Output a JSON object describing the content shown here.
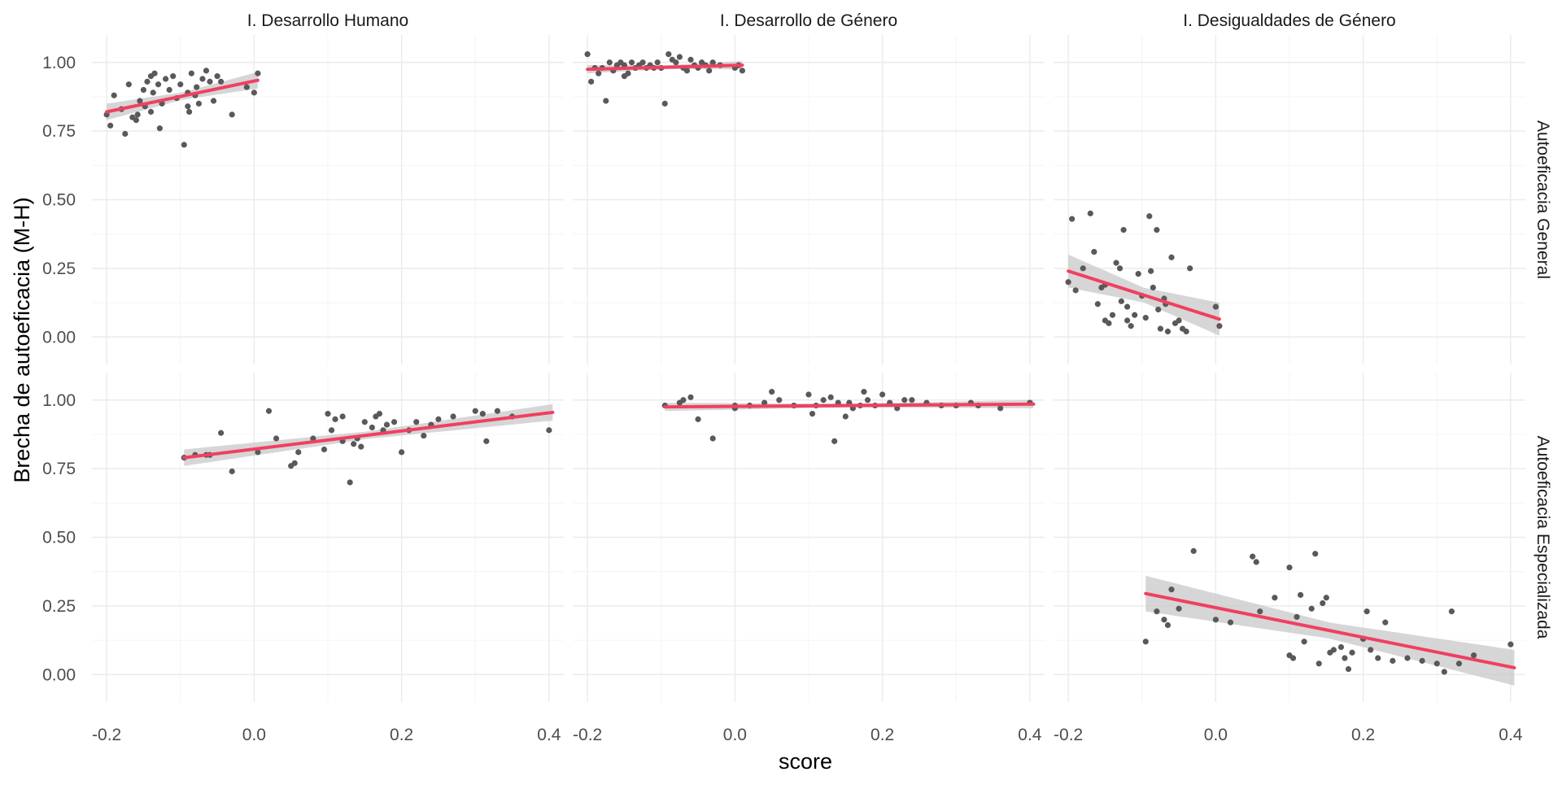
{
  "chart_data": {
    "type": "scatter",
    "xlabel": "score",
    "ylabel": "Brecha de autoeficacia (M-H)",
    "xlim": [
      -0.22,
      0.42
    ],
    "ylim": [
      -0.1,
      1.1
    ],
    "x_ticks": [
      -0.2,
      0.0,
      0.2,
      0.4
    ],
    "x_tick_labels": [
      "-0.2",
      "0.0",
      "0.2",
      "0.4"
    ],
    "y_ticks": [
      0.0,
      0.25,
      0.5,
      0.75,
      1.0
    ],
    "y_tick_labels": [
      "0.00",
      "0.25",
      "0.50",
      "0.75",
      "1.00"
    ],
    "columns": [
      "I. Desarrollo Humano",
      "I. Desarrollo de Género",
      "I. Desigualdades de Género"
    ],
    "rows": [
      "Autoeficacia General",
      "Autoeficacia Especializada"
    ],
    "colors": {
      "points": "#595959",
      "fit_line": "#f0405f",
      "confidence_band": "#c8c8c8",
      "grid": "#ebebeb"
    },
    "grid": true,
    "panels": [
      {
        "column": "I. Desarrollo Humano",
        "row": "Autoeficacia General",
        "fit": {
          "x0": -0.2,
          "y0": 0.82,
          "x1": 0.005,
          "y1": 0.935,
          "band": 0.03
        },
        "points": [
          [
            -0.2,
            0.81
          ],
          [
            -0.195,
            0.77
          ],
          [
            -0.19,
            0.88
          ],
          [
            -0.18,
            0.83
          ],
          [
            -0.175,
            0.74
          ],
          [
            -0.17,
            0.92
          ],
          [
            -0.165,
            0.8
          ],
          [
            -0.16,
            0.79
          ],
          [
            -0.158,
            0.81
          ],
          [
            -0.155,
            0.86
          ],
          [
            -0.15,
            0.9
          ],
          [
            -0.148,
            0.84
          ],
          [
            -0.145,
            0.93
          ],
          [
            -0.14,
            0.95
          ],
          [
            -0.137,
            0.89
          ],
          [
            -0.135,
            0.96
          ],
          [
            -0.13,
            0.92
          ],
          [
            -0.128,
            0.76
          ],
          [
            -0.125,
            0.85
          ],
          [
            -0.12,
            0.94
          ],
          [
            -0.115,
            0.9
          ],
          [
            -0.11,
            0.95
          ],
          [
            -0.105,
            0.87
          ],
          [
            -0.1,
            0.92
          ],
          [
            -0.095,
            0.7
          ],
          [
            -0.09,
            0.84
          ],
          [
            -0.088,
            0.82
          ],
          [
            -0.085,
            0.96
          ],
          [
            -0.08,
            0.88
          ],
          [
            -0.078,
            0.91
          ],
          [
            -0.075,
            0.85
          ],
          [
            -0.07,
            0.94
          ],
          [
            -0.065,
            0.97
          ],
          [
            -0.06,
            0.93
          ],
          [
            -0.055,
            0.86
          ],
          [
            -0.05,
            0.95
          ],
          [
            -0.045,
            0.93
          ],
          [
            -0.03,
            0.81
          ],
          [
            -0.01,
            0.91
          ],
          [
            0.0,
            0.89
          ],
          [
            0.005,
            0.96
          ],
          [
            -0.14,
            0.82
          ],
          [
            -0.09,
            0.89
          ]
        ]
      },
      {
        "column": "I. Desarrollo de Género",
        "row": "Autoeficacia General",
        "fit": {
          "x0": -0.2,
          "y0": 0.975,
          "x1": 0.01,
          "y1": 0.99,
          "band": 0.015
        },
        "points": [
          [
            -0.2,
            1.03
          ],
          [
            -0.195,
            0.93
          ],
          [
            -0.19,
            0.98
          ],
          [
            -0.185,
            0.96
          ],
          [
            -0.18,
            0.98
          ],
          [
            -0.175,
            0.86
          ],
          [
            -0.17,
            1.0
          ],
          [
            -0.165,
            0.97
          ],
          [
            -0.16,
            0.99
          ],
          [
            -0.155,
            1.0
          ],
          [
            -0.15,
            0.99
          ],
          [
            -0.145,
            0.96
          ],
          [
            -0.14,
            1.0
          ],
          [
            -0.135,
            0.98
          ],
          [
            -0.13,
            0.99
          ],
          [
            -0.125,
            1.0
          ],
          [
            -0.12,
            0.98
          ],
          [
            -0.115,
            0.99
          ],
          [
            -0.11,
            0.98
          ],
          [
            -0.105,
            1.0
          ],
          [
            -0.1,
            0.98
          ],
          [
            -0.095,
            0.85
          ],
          [
            -0.09,
            1.03
          ],
          [
            -0.085,
            1.01
          ],
          [
            -0.08,
            1.0
          ],
          [
            -0.075,
            1.02
          ],
          [
            -0.07,
            0.98
          ],
          [
            -0.065,
            0.97
          ],
          [
            -0.06,
            1.01
          ],
          [
            -0.055,
            0.99
          ],
          [
            -0.05,
            0.98
          ],
          [
            -0.045,
            1.0
          ],
          [
            -0.04,
            0.99
          ],
          [
            -0.035,
            0.97
          ],
          [
            -0.03,
            1.0
          ],
          [
            -0.02,
            0.99
          ],
          [
            0.0,
            0.98
          ],
          [
            0.005,
            0.99
          ],
          [
            0.01,
            0.97
          ],
          [
            -0.15,
            0.95
          ]
        ]
      },
      {
        "column": "I. Desigualdades de Género",
        "row": "Autoeficacia General",
        "fit": {
          "x0": -0.2,
          "y0": 0.24,
          "x1": 0.005,
          "y1": 0.065,
          "band": 0.06
        },
        "points": [
          [
            -0.2,
            0.2
          ],
          [
            -0.195,
            0.43
          ],
          [
            -0.19,
            0.17
          ],
          [
            -0.18,
            0.25
          ],
          [
            -0.17,
            0.45
          ],
          [
            -0.165,
            0.31
          ],
          [
            -0.16,
            0.12
          ],
          [
            -0.155,
            0.18
          ],
          [
            -0.15,
            0.06
          ],
          [
            -0.145,
            0.05
          ],
          [
            -0.14,
            0.08
          ],
          [
            -0.135,
            0.27
          ],
          [
            -0.13,
            0.25
          ],
          [
            -0.128,
            0.13
          ],
          [
            -0.125,
            0.39
          ],
          [
            -0.12,
            0.11
          ],
          [
            -0.115,
            0.04
          ],
          [
            -0.11,
            0.08
          ],
          [
            -0.105,
            0.23
          ],
          [
            -0.1,
            0.15
          ],
          [
            -0.095,
            0.07
          ],
          [
            -0.09,
            0.44
          ],
          [
            -0.088,
            0.24
          ],
          [
            -0.085,
            0.18
          ],
          [
            -0.08,
            0.39
          ],
          [
            -0.078,
            0.1
          ],
          [
            -0.075,
            0.03
          ],
          [
            -0.07,
            0.14
          ],
          [
            -0.068,
            0.12
          ],
          [
            -0.065,
            0.02
          ],
          [
            -0.06,
            0.29
          ],
          [
            -0.055,
            0.05
          ],
          [
            -0.05,
            0.06
          ],
          [
            -0.045,
            0.03
          ],
          [
            -0.04,
            0.02
          ],
          [
            -0.035,
            0.25
          ],
          [
            0.0,
            0.11
          ],
          [
            0.005,
            0.04
          ],
          [
            -0.15,
            0.19
          ],
          [
            -0.12,
            0.06
          ]
        ]
      },
      {
        "column": "I. Desarrollo Humano",
        "row": "Autoeficacia Especializada",
        "fit": {
          "x0": -0.095,
          "y0": 0.79,
          "x1": 0.405,
          "y1": 0.955,
          "band": 0.03
        },
        "points": [
          [
            -0.095,
            0.79
          ],
          [
            -0.08,
            0.8
          ],
          [
            -0.065,
            0.8
          ],
          [
            -0.06,
            0.8
          ],
          [
            -0.045,
            0.88
          ],
          [
            -0.03,
            0.74
          ],
          [
            0.005,
            0.81
          ],
          [
            0.02,
            0.96
          ],
          [
            0.03,
            0.86
          ],
          [
            0.05,
            0.76
          ],
          [
            0.055,
            0.77
          ],
          [
            0.06,
            0.81
          ],
          [
            0.08,
            0.86
          ],
          [
            0.095,
            0.82
          ],
          [
            0.1,
            0.95
          ],
          [
            0.105,
            0.89
          ],
          [
            0.11,
            0.93
          ],
          [
            0.12,
            0.85
          ],
          [
            0.13,
            0.7
          ],
          [
            0.135,
            0.84
          ],
          [
            0.14,
            0.86
          ],
          [
            0.145,
            0.83
          ],
          [
            0.15,
            0.92
          ],
          [
            0.16,
            0.9
          ],
          [
            0.165,
            0.94
          ],
          [
            0.17,
            0.95
          ],
          [
            0.175,
            0.89
          ],
          [
            0.18,
            0.91
          ],
          [
            0.19,
            0.92
          ],
          [
            0.2,
            0.81
          ],
          [
            0.21,
            0.89
          ],
          [
            0.22,
            0.92
          ],
          [
            0.23,
            0.87
          ],
          [
            0.24,
            0.91
          ],
          [
            0.25,
            0.93
          ],
          [
            0.27,
            0.94
          ],
          [
            0.3,
            0.96
          ],
          [
            0.31,
            0.95
          ],
          [
            0.315,
            0.85
          ],
          [
            0.33,
            0.96
          ],
          [
            0.35,
            0.94
          ],
          [
            0.4,
            0.89
          ],
          [
            0.12,
            0.94
          ]
        ]
      },
      {
        "column": "I. Desarrollo de Género",
        "row": "Autoeficacia Especializada",
        "fit": {
          "x0": -0.095,
          "y0": 0.975,
          "x1": 0.405,
          "y1": 0.985,
          "band": 0.015
        },
        "points": [
          [
            -0.095,
            0.98
          ],
          [
            -0.075,
            0.99
          ],
          [
            -0.07,
            1.0
          ],
          [
            -0.06,
            1.01
          ],
          [
            -0.05,
            0.93
          ],
          [
            -0.03,
            0.86
          ],
          [
            0.0,
            0.98
          ],
          [
            0.02,
            0.98
          ],
          [
            0.04,
            0.99
          ],
          [
            0.05,
            1.03
          ],
          [
            0.06,
            1.0
          ],
          [
            0.08,
            0.98
          ],
          [
            0.1,
            1.02
          ],
          [
            0.105,
            0.95
          ],
          [
            0.11,
            0.98
          ],
          [
            0.12,
            1.0
          ],
          [
            0.13,
            1.01
          ],
          [
            0.135,
            0.85
          ],
          [
            0.14,
            0.99
          ],
          [
            0.15,
            0.94
          ],
          [
            0.155,
            0.99
          ],
          [
            0.16,
            0.97
          ],
          [
            0.17,
            0.98
          ],
          [
            0.175,
            1.03
          ],
          [
            0.18,
            1.0
          ],
          [
            0.19,
            0.98
          ],
          [
            0.2,
            1.02
          ],
          [
            0.21,
            0.99
          ],
          [
            0.22,
            0.97
          ],
          [
            0.23,
            1.0
          ],
          [
            0.24,
            1.0
          ],
          [
            0.26,
            0.99
          ],
          [
            0.28,
            0.98
          ],
          [
            0.3,
            0.98
          ],
          [
            0.32,
            0.99
          ],
          [
            0.33,
            0.98
          ],
          [
            0.36,
            0.97
          ],
          [
            0.4,
            0.99
          ],
          [
            0.0,
            0.97
          ]
        ]
      },
      {
        "column": "I. Desigualdades de Género",
        "row": "Autoeficacia Especializada",
        "fit": {
          "x0": -0.095,
          "y0": 0.295,
          "x1": 0.405,
          "y1": 0.025,
          "band": 0.065
        },
        "points": [
          [
            -0.095,
            0.12
          ],
          [
            -0.08,
            0.23
          ],
          [
            -0.07,
            0.2
          ],
          [
            -0.065,
            0.18
          ],
          [
            -0.06,
            0.31
          ],
          [
            -0.05,
            0.24
          ],
          [
            -0.03,
            0.45
          ],
          [
            0.0,
            0.2
          ],
          [
            0.02,
            0.19
          ],
          [
            0.05,
            0.43
          ],
          [
            0.055,
            0.41
          ],
          [
            0.06,
            0.23
          ],
          [
            0.08,
            0.28
          ],
          [
            0.1,
            0.39
          ],
          [
            0.1,
            0.07
          ],
          [
            0.105,
            0.06
          ],
          [
            0.11,
            0.21
          ],
          [
            0.115,
            0.29
          ],
          [
            0.13,
            0.24
          ],
          [
            0.135,
            0.44
          ],
          [
            0.14,
            0.04
          ],
          [
            0.145,
            0.26
          ],
          [
            0.15,
            0.28
          ],
          [
            0.155,
            0.08
          ],
          [
            0.16,
            0.09
          ],
          [
            0.17,
            0.1
          ],
          [
            0.175,
            0.06
          ],
          [
            0.18,
            0.02
          ],
          [
            0.185,
            0.08
          ],
          [
            0.2,
            0.13
          ],
          [
            0.205,
            0.23
          ],
          [
            0.21,
            0.09
          ],
          [
            0.22,
            0.06
          ],
          [
            0.23,
            0.19
          ],
          [
            0.24,
            0.05
          ],
          [
            0.26,
            0.06
          ],
          [
            0.28,
            0.05
          ],
          [
            0.3,
            0.04
          ],
          [
            0.31,
            0.01
          ],
          [
            0.32,
            0.23
          ],
          [
            0.33,
            0.04
          ],
          [
            0.35,
            0.07
          ],
          [
            0.4,
            0.11
          ],
          [
            0.12,
            0.12
          ]
        ]
      }
    ]
  }
}
